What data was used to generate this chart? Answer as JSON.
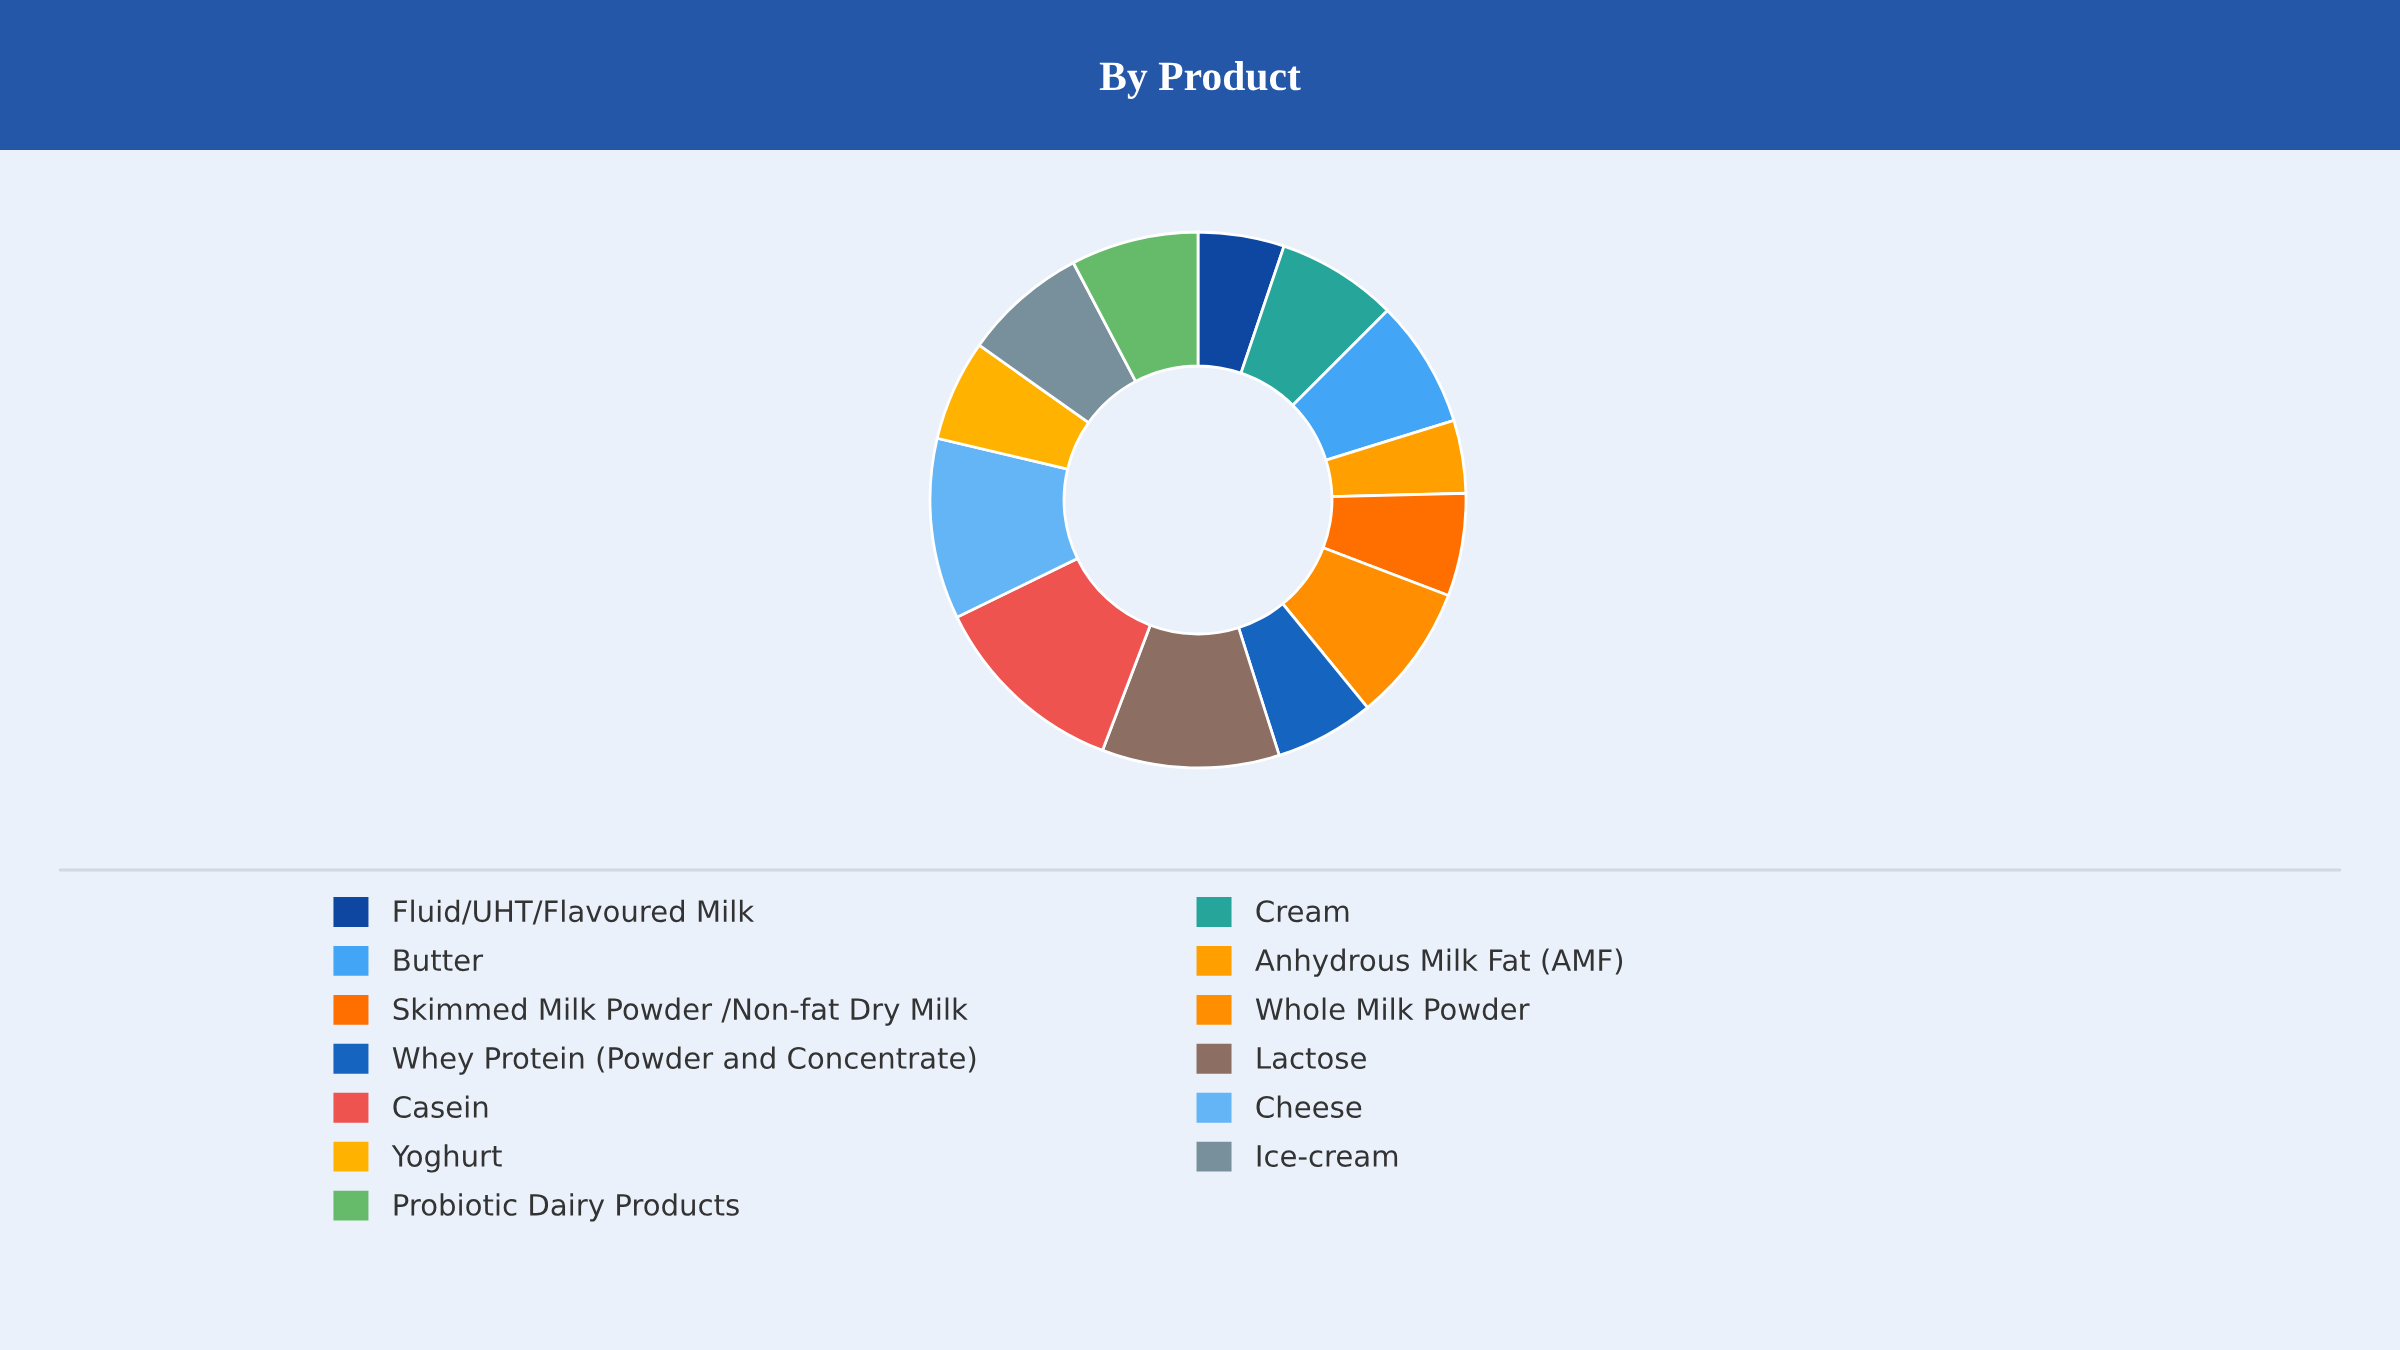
{
  "chart_data": {
    "type": "donut",
    "title": "By Product",
    "legend": "bottom",
    "categories": [
      "Fluid/UHT/Flavoured Milk",
      "Cream",
      "Butter",
      "Anhydrous Milk Fat (AMF)",
      "Skimmed Milk Powder /Non-fat Dry Milk",
      "Whole Milk Powder",
      "Whey Protein (Powder and Concentrate)",
      "Lactose",
      "Casein",
      "Cheese",
      "Yoghurt",
      "Ice-cream",
      "Probiotic Dairy Products"
    ],
    "values": [
      5.2,
      7.3,
      7.7,
      4.4,
      6.2,
      8.3,
      6.0,
      10.7,
      12.0,
      10.9,
      6.1,
      7.5,
      7.7
    ],
    "colors": [
      "#0d47a1",
      "#26a69a",
      "#42a5f5",
      "#ffa000",
      "#ff6f00",
      "#ff8f00",
      "#1565c0",
      "#8d6e63",
      "#ef5350",
      "#64b5f6",
      "#ffb300",
      "#78909c",
      "#66bb6a"
    ]
  }
}
